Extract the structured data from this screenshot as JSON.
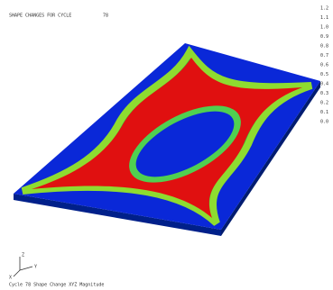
{
  "header": {
    "title": "SHAPE CHANGES FOR CYCLE",
    "cycle": "78"
  },
  "legend": {
    "labels": [
      "1.2",
      "1.1",
      "1.0",
      "0.9",
      "0.8",
      "0.7",
      "0.6",
      "0.5",
      "0.4",
      "0.3",
      "0.2",
      "0.1",
      "0.0"
    ]
  },
  "triad": {
    "z": "Z",
    "y": "Y",
    "x": "X"
  },
  "footer": {
    "caption": "Cycle 78 Shape Change XYZ Magnitude"
  }
}
